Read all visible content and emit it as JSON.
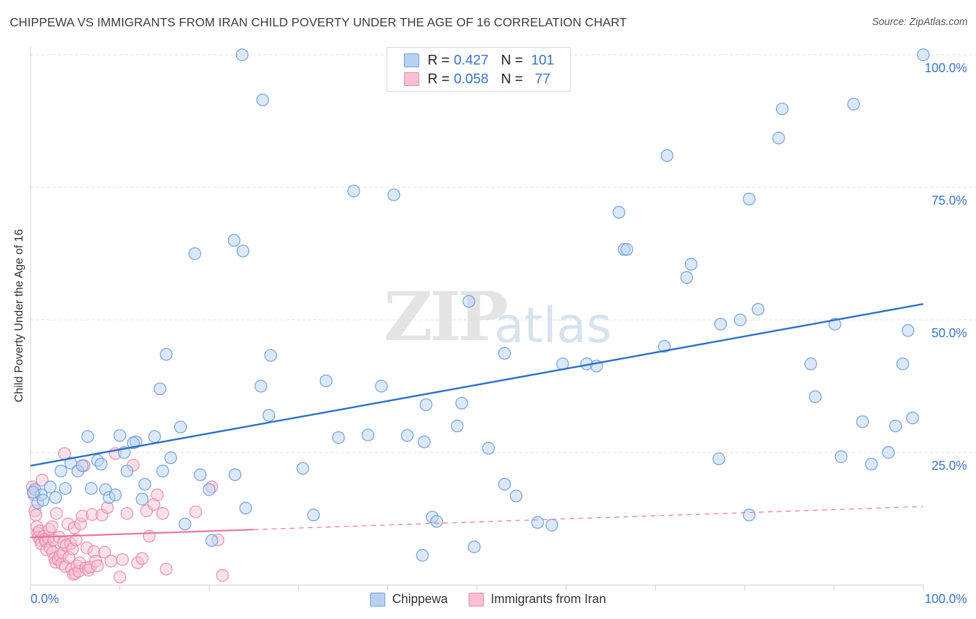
{
  "header": {
    "title": "CHIPPEWA VS IMMIGRANTS FROM IRAN CHILD POVERTY UNDER THE AGE OF 16 CORRELATION CHART",
    "source": "Source: ZipAtlas.com"
  },
  "watermark": {
    "zip": "ZIP",
    "atlas": "atlas"
  },
  "legend": {
    "rows": [
      {
        "r_label": "R =",
        "r_value": "0.427",
        "n_label": "N =",
        "n_value": "101"
      },
      {
        "r_label": "R =",
        "r_value": "0.058",
        "n_label": "N =",
        "n_value": "77"
      }
    ]
  },
  "colors": {
    "blue_fill": "#b8d1f3",
    "blue_stroke": "#6f9fdc",
    "blue_line": "#2f70c9",
    "pink_fill": "#f7bfd1",
    "pink_stroke": "#ec8bab",
    "pink_line": "#e8729a",
    "axis_text": "#3b73c8",
    "grid": "#dcdcdc"
  },
  "chart_data": {
    "type": "scatter",
    "title": "CHIPPEWA VS IMMIGRANTS FROM IRAN CHILD POVERTY UNDER THE AGE OF 16 CORRELATION CHART",
    "xlabel": "",
    "ylabel": "Child Poverty Under the Age of 16",
    "xlim": [
      0,
      100
    ],
    "ylim": [
      0,
      100
    ],
    "x_tick_labels": [
      {
        "value": 0,
        "label": "0.0%"
      },
      {
        "value": 100,
        "label": "100.0%"
      }
    ],
    "y_tick_labels": [
      {
        "value": 25,
        "label": "25.0%"
      },
      {
        "value": 50,
        "label": "50.0%"
      },
      {
        "value": 75,
        "label": "75.0%"
      },
      {
        "value": 100,
        "label": "100.0%"
      }
    ],
    "grid": true,
    "legend_position": "top-center",
    "series": [
      {
        "name": "Chippewa",
        "color": "#b8d1f3",
        "trend": {
          "x": [
            0,
            100
          ],
          "y": [
            22.5,
            53.0
          ],
          "dashed_from": null
        },
        "points": [
          [
            0.5,
            18
          ],
          [
            0.8,
            15.5
          ],
          [
            1.2,
            17
          ],
          [
            1.4,
            16
          ],
          [
            2.2,
            18.5
          ],
          [
            2.8,
            16.5
          ],
          [
            3.4,
            21.5
          ],
          [
            3.9,
            18.2
          ],
          [
            4.5,
            23
          ],
          [
            5.3,
            21.5
          ],
          [
            5.8,
            22.5
          ],
          [
            6.4,
            28
          ],
          [
            6.8,
            18.2
          ],
          [
            7.5,
            23.5
          ],
          [
            7.9,
            22.8
          ],
          [
            8.4,
            18
          ],
          [
            8.8,
            16.5
          ],
          [
            9.5,
            17
          ],
          [
            10,
            28.2
          ],
          [
            10.5,
            25
          ],
          [
            10.8,
            21.5
          ],
          [
            11.8,
            27
          ],
          [
            11.5,
            26.8
          ],
          [
            12.8,
            19
          ],
          [
            12.5,
            16.2
          ],
          [
            13.9,
            28
          ],
          [
            14.5,
            37
          ],
          [
            14.8,
            21.5
          ],
          [
            15.2,
            43.5
          ],
          [
            15.7,
            24
          ],
          [
            16.8,
            29.8
          ],
          [
            17.3,
            11.5
          ],
          [
            18.4,
            62.5
          ],
          [
            19,
            20.8
          ],
          [
            20,
            18
          ],
          [
            20.3,
            8.4
          ],
          [
            22.8,
            65
          ],
          [
            22.9,
            20.8
          ],
          [
            23.7,
            100
          ],
          [
            23.8,
            63
          ],
          [
            24.1,
            14.5
          ],
          [
            25.8,
            37.5
          ],
          [
            26,
            91.5
          ],
          [
            26.7,
            32
          ],
          [
            26.9,
            43.3
          ],
          [
            30.5,
            22
          ],
          [
            31.7,
            13.2
          ],
          [
            33.1,
            38.5
          ],
          [
            34.5,
            27.8
          ],
          [
            36.2,
            74.3
          ],
          [
            37.8,
            28.3
          ],
          [
            39.3,
            37.5
          ],
          [
            40.7,
            73.6
          ],
          [
            42.2,
            28.2
          ],
          [
            43.9,
            5.6
          ],
          [
            44.1,
            27
          ],
          [
            44.3,
            34
          ],
          [
            45,
            12.8
          ],
          [
            45.5,
            12
          ],
          [
            47.8,
            30
          ],
          [
            48.3,
            34.3
          ],
          [
            49.1,
            53.5
          ],
          [
            49.7,
            7.2
          ],
          [
            51.3,
            25.8
          ],
          [
            53.1,
            43.7
          ],
          [
            53.1,
            19
          ],
          [
            54.4,
            16.8
          ],
          [
            56.8,
            11.8
          ],
          [
            58.4,
            11.3
          ],
          [
            59.6,
            41.7
          ],
          [
            62.3,
            41.7
          ],
          [
            63.4,
            41.3
          ],
          [
            65.9,
            70.3
          ],
          [
            66.5,
            63.3
          ],
          [
            66.8,
            63.3
          ],
          [
            71,
            45
          ],
          [
            71.3,
            81
          ],
          [
            73.5,
            58
          ],
          [
            74,
            60.5
          ],
          [
            77.1,
            23.8
          ],
          [
            77.3,
            49.2
          ],
          [
            79.5,
            50
          ],
          [
            80.5,
            72.8
          ],
          [
            80.5,
            13.2
          ],
          [
            81.5,
            52
          ],
          [
            83.8,
            84.3
          ],
          [
            84.2,
            89.8
          ],
          [
            87.4,
            41.7
          ],
          [
            87.9,
            35.5
          ],
          [
            90.1,
            49.2
          ],
          [
            90.8,
            24.2
          ],
          [
            92.2,
            90.7
          ],
          [
            93.2,
            30.8
          ],
          [
            94.2,
            22.8
          ],
          [
            96.1,
            25
          ],
          [
            96.9,
            30
          ],
          [
            97.7,
            41.7
          ],
          [
            98.3,
            48
          ],
          [
            98.8,
            31.5
          ],
          [
            100,
            100
          ],
          [
            0.3,
            17.5
          ]
        ]
      },
      {
        "name": "Immigrants from Iran",
        "color": "#f7bfd1",
        "trend": {
          "x": [
            0,
            100
          ],
          "y": [
            9.0,
            14.8
          ],
          "dashed_from": 25
        },
        "points": [
          [
            0.2,
            18.5
          ],
          [
            0.4,
            17
          ],
          [
            0.5,
            14
          ],
          [
            0.6,
            13.2
          ],
          [
            0.7,
            11
          ],
          [
            0.8,
            9.8
          ],
          [
            0.9,
            9
          ],
          [
            1,
            10.2
          ],
          [
            1.1,
            8.4
          ],
          [
            1.2,
            7.8
          ],
          [
            1.3,
            19.8
          ],
          [
            1.5,
            9.2
          ],
          [
            1.6,
            8.6
          ],
          [
            1.7,
            8.2
          ],
          [
            1.8,
            6.6
          ],
          [
            2,
            8.8
          ],
          [
            2.1,
            10.5
          ],
          [
            2.2,
            7
          ],
          [
            2.4,
            11
          ],
          [
            2.5,
            6.2
          ],
          [
            2.6,
            8.5
          ],
          [
            2.7,
            5
          ],
          [
            2.8,
            4.3
          ],
          [
            2.9,
            13.5
          ],
          [
            3.1,
            4.8
          ],
          [
            3.2,
            9
          ],
          [
            3.3,
            5.5
          ],
          [
            3.5,
            4
          ],
          [
            3.6,
            6
          ],
          [
            3.7,
            8
          ],
          [
            3.8,
            24.8
          ],
          [
            3.9,
            3.5
          ],
          [
            4,
            7.5
          ],
          [
            4.2,
            11.5
          ],
          [
            4.3,
            5.2
          ],
          [
            4.5,
            7.8
          ],
          [
            4.6,
            3
          ],
          [
            4.7,
            6.8
          ],
          [
            4.8,
            2
          ],
          [
            4.9,
            10.8
          ],
          [
            5,
            2.2
          ],
          [
            5.1,
            8.5
          ],
          [
            5.2,
            3.6
          ],
          [
            5.4,
            2.6
          ],
          [
            5.5,
            4.2
          ],
          [
            5.6,
            11.5
          ],
          [
            5.8,
            13
          ],
          [
            6,
            22.5
          ],
          [
            6.2,
            3.2
          ],
          [
            6.3,
            7
          ],
          [
            6.5,
            2.8
          ],
          [
            6.7,
            3.4
          ],
          [
            6.9,
            13.3
          ],
          [
            7.1,
            6.3
          ],
          [
            7.3,
            4.5
          ],
          [
            7.5,
            3.6
          ],
          [
            8,
            13.2
          ],
          [
            8.3,
            6.2
          ],
          [
            8.6,
            14.6
          ],
          [
            9,
            4.5
          ],
          [
            9.5,
            24.8
          ],
          [
            10,
            1.5
          ],
          [
            10.3,
            4.8
          ],
          [
            10.8,
            13.5
          ],
          [
            11.5,
            22.6
          ],
          [
            12,
            4.2
          ],
          [
            12.5,
            5
          ],
          [
            13,
            14
          ],
          [
            13.3,
            9.2
          ],
          [
            13.8,
            15.2
          ],
          [
            14.2,
            17
          ],
          [
            14.8,
            13.5
          ],
          [
            15.2,
            3
          ],
          [
            18.5,
            13.8
          ],
          [
            20.3,
            18.5
          ],
          [
            21,
            8.5
          ],
          [
            21.5,
            1.8
          ]
        ]
      }
    ]
  },
  "bottom_legend": {
    "items": [
      {
        "label": "Chippewa"
      },
      {
        "label": "Immigrants from Iran"
      }
    ]
  },
  "y_axis_label": "Child Poverty Under the Age of 16"
}
